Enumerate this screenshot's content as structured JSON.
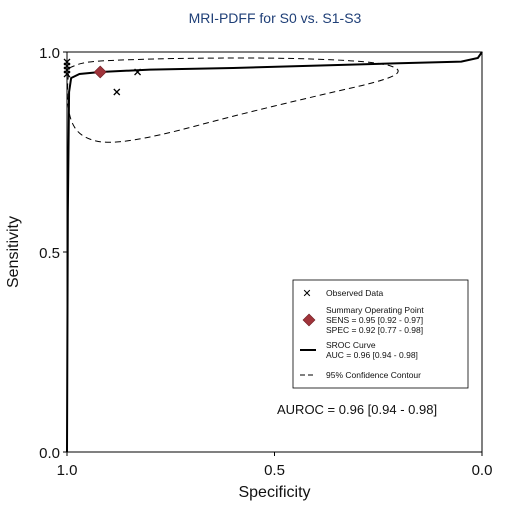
{
  "chart_data": {
    "type": "line",
    "title": "MRI-PDFF for S0 vs. S1-S3",
    "xlabel": "Specificity",
    "ylabel": "Sensitivity",
    "x_reversed": true,
    "xlim": [
      1.0,
      0.0
    ],
    "ylim": [
      0.0,
      1.0
    ],
    "x_ticks": [
      "1.0",
      "0.5",
      "0.0"
    ],
    "y_ticks": [
      "0.0",
      "0.5",
      "1.0"
    ],
    "grid": false,
    "legend_position": "lower-right",
    "colors": {
      "summary_point": "#a0333a",
      "curve": "#000000",
      "title": "#1f3f77"
    },
    "observed_data": [
      {
        "specificity": 1.0,
        "sensitivity": 0.975
      },
      {
        "specificity": 1.0,
        "sensitivity": 0.965
      },
      {
        "specificity": 1.0,
        "sensitivity": 0.955
      },
      {
        "specificity": 1.0,
        "sensitivity": 0.945
      },
      {
        "specificity": 0.88,
        "sensitivity": 0.9
      },
      {
        "specificity": 0.83,
        "sensitivity": 0.95
      }
    ],
    "summary_point": {
      "specificity": 0.92,
      "sensitivity": 0.95
    },
    "sroc_curve": [
      {
        "specificity": 1.0,
        "sensitivity": 0.0
      },
      {
        "specificity": 0.998,
        "sensitivity": 0.6
      },
      {
        "specificity": 0.995,
        "sensitivity": 0.9
      },
      {
        "specificity": 0.99,
        "sensitivity": 0.935
      },
      {
        "specificity": 0.97,
        "sensitivity": 0.945
      },
      {
        "specificity": 0.92,
        "sensitivity": 0.95
      },
      {
        "specificity": 0.8,
        "sensitivity": 0.956
      },
      {
        "specificity": 0.6,
        "sensitivity": 0.96
      },
      {
        "specificity": 0.4,
        "sensitivity": 0.966
      },
      {
        "specificity": 0.2,
        "sensitivity": 0.972
      },
      {
        "specificity": 0.05,
        "sensitivity": 0.976
      },
      {
        "specificity": 0.01,
        "sensitivity": 0.985
      },
      {
        "specificity": 0.0,
        "sensitivity": 1.0
      }
    ],
    "confidence_contour": [
      {
        "specificity": 0.995,
        "sensitivity": 0.96
      },
      {
        "specificity": 0.96,
        "sensitivity": 0.975
      },
      {
        "specificity": 0.88,
        "sensitivity": 0.98
      },
      {
        "specificity": 0.7,
        "sensitivity": 0.985
      },
      {
        "specificity": 0.45,
        "sensitivity": 0.985
      },
      {
        "specificity": 0.25,
        "sensitivity": 0.975
      },
      {
        "specificity": 0.19,
        "sensitivity": 0.955
      },
      {
        "specificity": 0.23,
        "sensitivity": 0.93
      },
      {
        "specificity": 0.4,
        "sensitivity": 0.89
      },
      {
        "specificity": 0.6,
        "sensitivity": 0.84
      },
      {
        "specificity": 0.78,
        "sensitivity": 0.79
      },
      {
        "specificity": 0.9,
        "sensitivity": 0.77
      },
      {
        "specificity": 0.96,
        "sensitivity": 0.785
      },
      {
        "specificity": 0.99,
        "sensitivity": 0.82
      },
      {
        "specificity": 1.0,
        "sensitivity": 0.88
      },
      {
        "specificity": 0.998,
        "sensitivity": 0.93
      },
      {
        "specificity": 0.995,
        "sensitivity": 0.96
      }
    ],
    "legend": {
      "observed": "Observed Data",
      "summary_line1": "Summary Operating  Point",
      "summary_line2": "SENS = 0.95 [0.92 - 0.97]",
      "summary_line3": "SPEC = 0.92 [0.77 - 0.98]",
      "sroc_line1": "SROC Curve",
      "sroc_line2": "AUC = 0.96 [0.94 - 0.98]",
      "contour": "95% Confidence Contour"
    },
    "annotation": "AUROC = 0.96 [0.94 - 0.98]"
  }
}
